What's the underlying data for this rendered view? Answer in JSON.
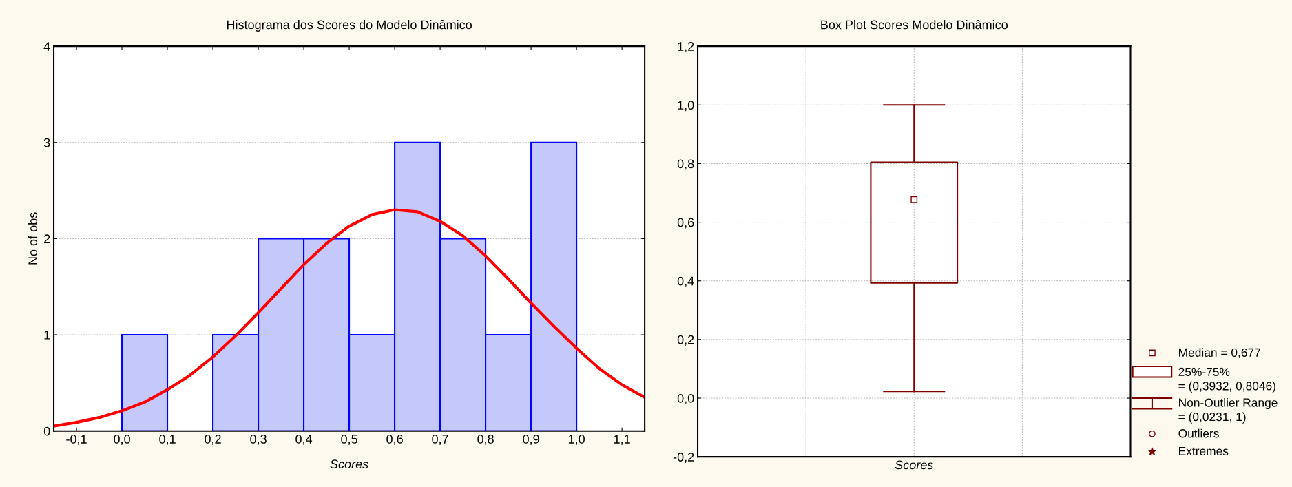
{
  "chart_data": [
    {
      "type": "histogram",
      "title": "Histograma dos Scores do Modelo Dinâmico",
      "xlabel": "Scores",
      "ylabel": "No of obs",
      "bins": [
        0.0,
        0.1,
        0.2,
        0.3,
        0.4,
        0.5,
        0.6,
        0.7,
        0.8,
        0.9,
        1.0
      ],
      "values": [
        1,
        0,
        1,
        2,
        2,
        1,
        3,
        2,
        1,
        3
      ],
      "color": "#c4c8fa",
      "series": [
        {
          "type": "line",
          "color": "#ff0000",
          "x": [
            -0.15,
            -0.1,
            -0.05,
            0.0,
            0.05,
            0.1,
            0.15,
            0.2,
            0.25,
            0.3,
            0.35,
            0.4,
            0.45,
            0.5,
            0.55,
            0.6,
            0.65,
            0.7,
            0.75,
            0.8,
            0.85,
            0.9,
            0.95,
            1.0,
            1.05,
            1.1,
            1.15
          ],
          "values": [
            0.05,
            0.09,
            0.14,
            0.21,
            0.3,
            0.43,
            0.58,
            0.77,
            0.99,
            1.23,
            1.48,
            1.73,
            1.95,
            2.13,
            2.25,
            2.3,
            2.28,
            2.18,
            2.03,
            1.82,
            1.58,
            1.33,
            1.09,
            0.86,
            0.65,
            0.48,
            0.35
          ]
        }
      ],
      "xlim": [
        -0.15,
        1.15
      ],
      "xticks": [
        {
          "value": -0.1,
          "label": "-0,1"
        },
        {
          "value": 0.0,
          "label": "0,0"
        },
        {
          "value": 0.1,
          "label": "0,1"
        },
        {
          "value": 0.2,
          "label": "0,2"
        },
        {
          "value": 0.3,
          "label": "0,3"
        },
        {
          "value": 0.4,
          "label": "0,4"
        },
        {
          "value": 0.5,
          "label": "0,5"
        },
        {
          "value": 0.6,
          "label": "0,6"
        },
        {
          "value": 0.7,
          "label": "0,7"
        },
        {
          "value": 0.8,
          "label": "0,8"
        },
        {
          "value": 0.9,
          "label": "0,9"
        },
        {
          "value": 1.0,
          "label": "1,0"
        },
        {
          "value": 1.1,
          "label": "1,1"
        }
      ],
      "ylim": [
        0,
        4
      ],
      "yticks": [
        0,
        1,
        2,
        3,
        4
      ],
      "grid": "y"
    },
    {
      "type": "box",
      "title": "Box Plot Scores Modelo Dinâmico",
      "categories": [
        "Scores"
      ],
      "color": "#800000",
      "boxes": [
        {
          "low": 0.0231,
          "q1": 0.3932,
          "median": 0.677,
          "q3": 0.8046,
          "high": 1
        }
      ],
      "ylim": [
        -0.2,
        1.2
      ],
      "yticks": [
        {
          "value": -0.2,
          "label": "-0,2"
        },
        {
          "value": 0.0,
          "label": "0,0"
        },
        {
          "value": 0.2,
          "label": "0,2"
        },
        {
          "value": 0.4,
          "label": "0,4"
        },
        {
          "value": 0.6,
          "label": "0,6"
        },
        {
          "value": 0.8,
          "label": "0,8"
        },
        {
          "value": 1.0,
          "label": "1,0"
        },
        {
          "value": 1.2,
          "label": "1,2"
        }
      ],
      "grid": true,
      "annotations": [
        "Median = 0,677",
        "25%-75%\n= (0,3932, 0,8046)",
        "Non-Outlier Range\n= (0,0231, 1)",
        "Outliers",
        "Extremes"
      ]
    }
  ]
}
